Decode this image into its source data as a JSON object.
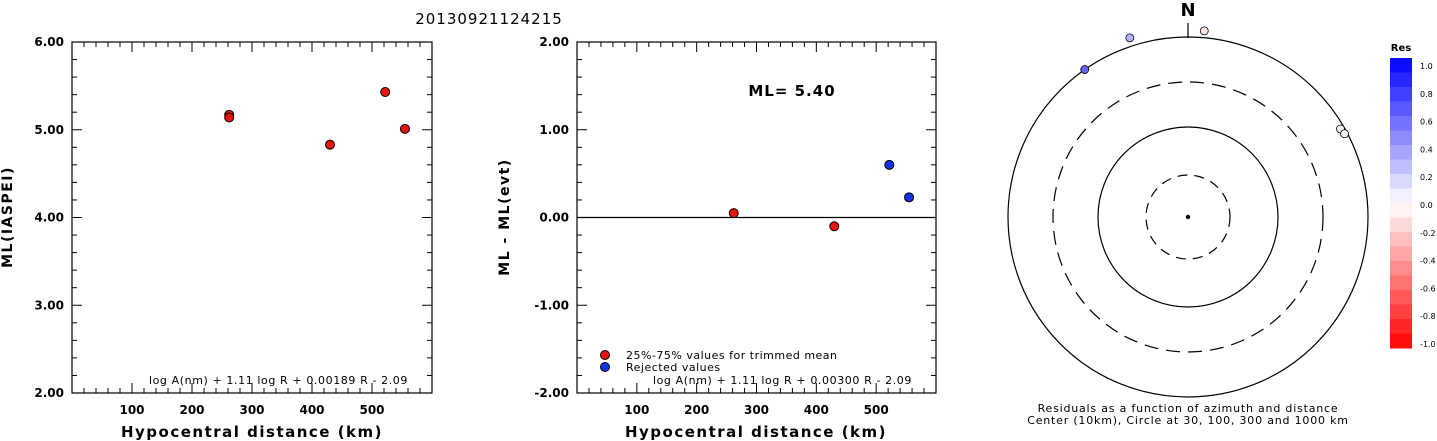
{
  "title": "20130921124215",
  "chart_data": [
    {
      "type": "scatter",
      "xlabel": "Hypocentral distance (km)",
      "ylabel": "ML(IASPEI)",
      "xlim": [
        0,
        600
      ],
      "ylim": [
        2.0,
        6.0
      ],
      "x_ticks": [
        "100",
        "200",
        "300",
        "400",
        "500"
      ],
      "y_ticks": [
        "2.00",
        "3.00",
        "4.00",
        "5.00",
        "6.00"
      ],
      "formula": "log A(nm) + 1.11 log R + 0.00189 R - 2.09",
      "series": [
        {
          "color": "#e8140a",
          "points": [
            [
              262,
              5.17
            ],
            [
              262,
              5.14
            ],
            [
              430,
              4.83
            ],
            [
              522,
              5.43
            ],
            [
              555,
              5.01
            ]
          ]
        }
      ]
    },
    {
      "type": "scatter",
      "xlabel": "Hypocentral distance (km)",
      "ylabel": "ML - ML(evt)",
      "xlim": [
        0,
        600
      ],
      "ylim": [
        -2.0,
        2.0
      ],
      "x_ticks": [
        "100",
        "200",
        "300",
        "400",
        "500"
      ],
      "y_ticks": [
        "-2.00",
        "-1.00",
        "0.00",
        "1.00",
        "2.00"
      ],
      "annotation": "ML= 5.40",
      "formula": "log A(nm) + 1.11 log R + 0.00300 R - 2.09",
      "legend": [
        {
          "label": "25%-75% values for trimmed mean",
          "color": "#e8140a"
        },
        {
          "label": "Rejected values",
          "color": "#1432e6"
        }
      ],
      "series": [
        {
          "name": "25%-75% values for trimmed mean",
          "color": "#e8140a",
          "points": [
            [
              262,
              0.05
            ],
            [
              430,
              -0.1
            ]
          ]
        },
        {
          "name": "Rejected values",
          "color": "#1432e6",
          "points": [
            [
              522,
              0.6
            ],
            [
              555,
              0.23
            ]
          ]
        }
      ]
    },
    {
      "type": "polar-scatter",
      "north_label": "N",
      "caption_line1": "Residuals as a function of azimuth and distance",
      "caption_line2": "Center (10km), Circle at 30, 100, 300 and 1000 km",
      "points": [
        {
          "azimuth": 325,
          "distance_km": 1000,
          "residual": 0.6
        },
        {
          "azimuth": 342,
          "distance_km": 1250,
          "residual": 0.3
        },
        {
          "azimuth": 5,
          "distance_km": 1200,
          "residual": -0.1
        },
        {
          "azimuth": 60,
          "distance_km": 900,
          "residual": 0.05
        },
        {
          "azimuth": 62,
          "distance_km": 930,
          "residual": -0.05
        }
      ]
    }
  ],
  "colorbar": {
    "title": "Res",
    "labels": [
      "1.0",
      "0.8",
      "0.6",
      "0.4",
      "0.2",
      "0.0",
      "-0.2",
      "-0.4",
      "-0.6",
      "-0.8",
      "-1.0"
    ]
  }
}
